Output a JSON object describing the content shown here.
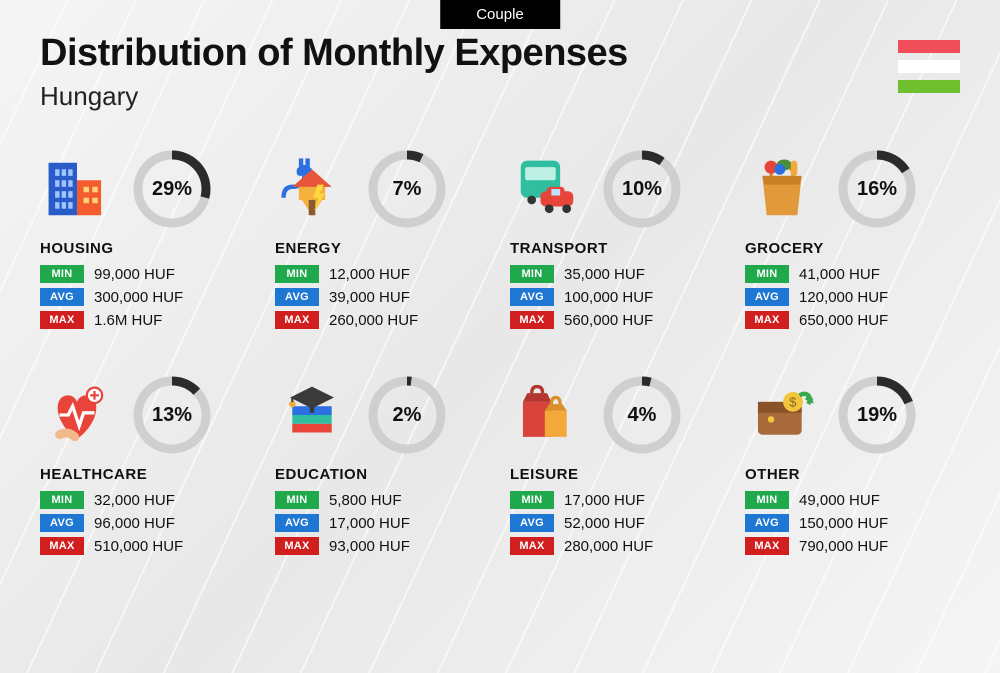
{
  "tab_label": "Couple",
  "title": "Distribution of Monthly Expenses",
  "subtitle": "Hungary",
  "flag_colors": [
    "#f04e5a",
    "#ffffff",
    "#6fbf2f"
  ],
  "colors": {
    "min_badge": "#1fa84c",
    "avg_badge": "#1f77d4",
    "max_badge": "#d11f1f",
    "ring_track": "#cfcfcf",
    "ring_fill": "#2b2b2b"
  },
  "badge_labels": {
    "min": "MIN",
    "avg": "AVG",
    "max": "MAX"
  },
  "currency": "HUF",
  "categories": [
    {
      "key": "housing",
      "label": "HOUSING",
      "pct": 29,
      "min": "99,000 HUF",
      "avg": "300,000 HUF",
      "max": "1.6M HUF"
    },
    {
      "key": "energy",
      "label": "ENERGY",
      "pct": 7,
      "min": "12,000 HUF",
      "avg": "39,000 HUF",
      "max": "260,000 HUF"
    },
    {
      "key": "transport",
      "label": "TRANSPORT",
      "pct": 10,
      "min": "35,000 HUF",
      "avg": "100,000 HUF",
      "max": "560,000 HUF"
    },
    {
      "key": "grocery",
      "label": "GROCERY",
      "pct": 16,
      "min": "41,000 HUF",
      "avg": "120,000 HUF",
      "max": "650,000 HUF"
    },
    {
      "key": "healthcare",
      "label": "HEALTHCARE",
      "pct": 13,
      "min": "32,000 HUF",
      "avg": "96,000 HUF",
      "max": "510,000 HUF"
    },
    {
      "key": "education",
      "label": "EDUCATION",
      "pct": 2,
      "min": "5,800 HUF",
      "avg": "17,000 HUF",
      "max": "93,000 HUF"
    },
    {
      "key": "leisure",
      "label": "LEISURE",
      "pct": 4,
      "min": "17,000 HUF",
      "avg": "52,000 HUF",
      "max": "280,000 HUF"
    },
    {
      "key": "other",
      "label": "OTHER",
      "pct": 19,
      "min": "49,000 HUF",
      "avg": "150,000 HUF",
      "max": "790,000 HUF"
    }
  ]
}
